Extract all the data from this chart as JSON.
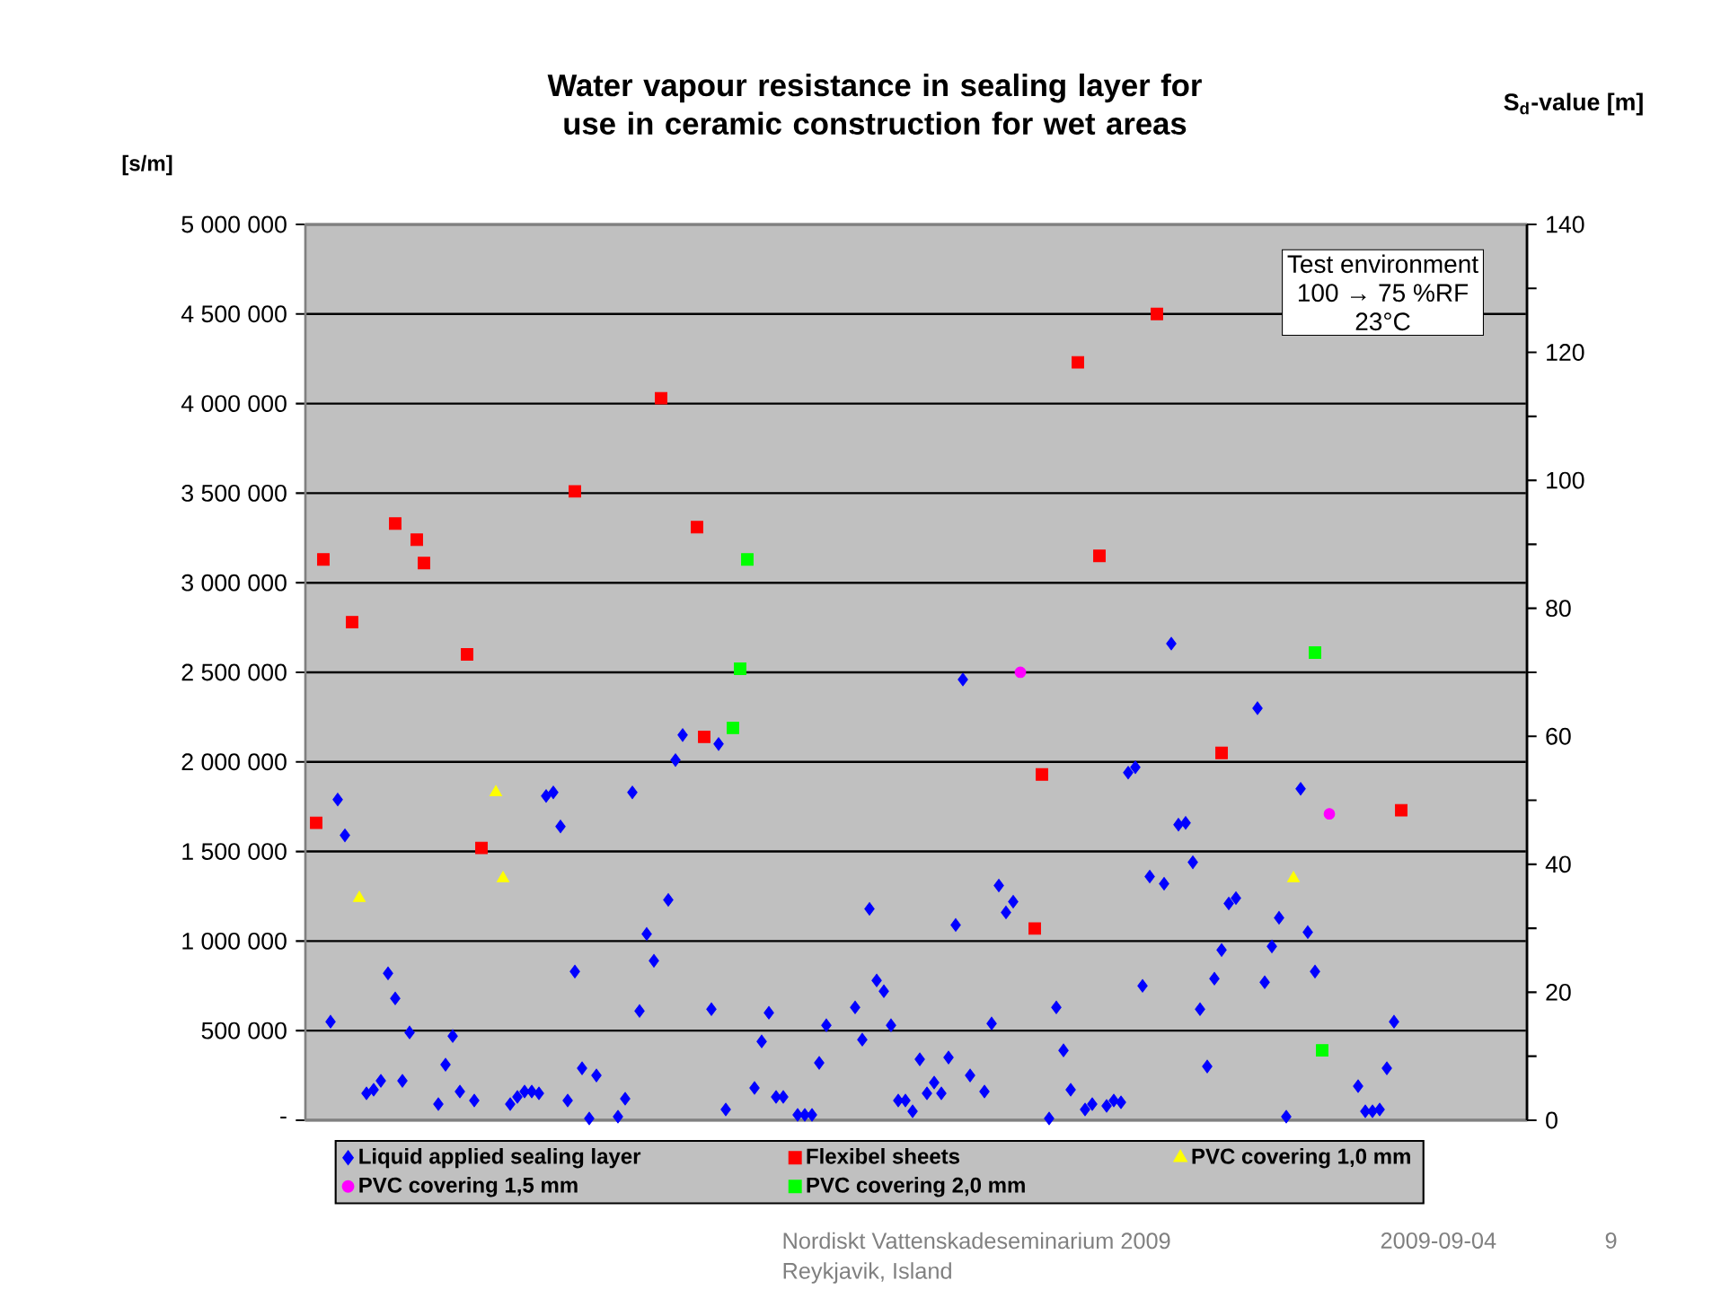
{
  "chart_data": {
    "type": "scatter",
    "title": "Water vapour resistance in sealing layer for use in ceramic construction for wet areas",
    "ylabel": "[s/m]",
    "y2label": "S$_{d}$-value [m]",
    "categories": [
      null,
      null,
      null,
      null,
      null,
      null,
      null,
      null,
      null,
      null,
      null,
      null,
      null,
      null,
      null,
      null,
      null,
      null,
      null,
      null,
      null,
      null,
      null,
      null,
      null,
      null,
      null,
      null,
      null,
      null,
      null,
      null,
      null,
      null,
      null,
      null,
      null,
      null,
      null,
      null,
      null,
      null,
      null,
      null,
      null,
      null,
      null,
      null,
      null,
      null,
      null,
      null,
      null,
      null,
      null,
      null,
      null,
      null,
      null,
      null,
      null,
      null,
      null,
      null,
      null,
      null,
      null,
      null,
      null,
      null,
      null,
      null,
      null,
      null,
      null,
      null,
      null,
      null,
      null,
      null,
      null,
      null,
      null,
      null,
      null,
      null,
      null,
      null,
      null,
      null,
      null,
      null,
      null,
      null,
      null,
      null,
      null,
      null,
      null,
      null,
      null,
      null,
      null,
      null,
      null,
      null,
      null,
      null,
      null,
      null,
      null,
      null,
      null,
      null,
      null,
      null,
      null,
      null,
      null,
      null,
      null,
      null,
      null,
      null,
      null,
      null,
      null,
      null,
      null,
      null,
      null,
      null,
      null,
      null,
      null,
      null,
      null,
      null,
      null,
      null,
      null,
      null,
      null,
      null,
      null,
      null,
      null,
      null,
      null,
      null,
      null,
      null,
      null,
      null,
      null,
      null,
      null,
      null,
      null,
      null,
      null,
      null,
      null,
      null,
      null,
      null,
      null,
      null,
      null,
      null
    ],
    "series": [
      {
        "name": "Liquid applied sealing layer",
        "color": "#0000ff",
        "marker": "diamond",
        "values": [
          null,
          null,
          null,
          550000,
          1790000,
          1590000,
          null,
          null,
          150000,
          170000,
          220000,
          820000,
          680000,
          220000,
          490000,
          null,
          null,
          null,
          90000,
          310000,
          470000,
          160000,
          null,
          110000,
          null,
          null,
          null,
          null,
          90000,
          130000,
          160000,
          160000,
          150000,
          1810000,
          1830000,
          1640000,
          110000,
          830000,
          290000,
          10000,
          250000,
          null,
          null,
          20000,
          120000,
          1830000,
          610000,
          1040000,
          890000,
          null,
          1230000,
          2010000,
          2150000,
          null,
          null,
          null,
          620000,
          2100000,
          60000,
          null,
          null,
          null,
          180000,
          440000,
          600000,
          130000,
          130000,
          null,
          30000,
          30000,
          30000,
          320000,
          530000,
          null,
          null,
          null,
          630000,
          450000,
          1180000,
          780000,
          720000,
          530000,
          110000,
          110000,
          50000,
          340000,
          150000,
          210000,
          150000,
          350000,
          1090000,
          2460000,
          250000,
          null,
          160000,
          540000,
          1310000,
          1160000,
          1220000,
          null,
          null,
          null,
          null,
          10000,
          630000,
          390000,
          170000,
          null,
          60000,
          90000,
          null,
          80000,
          110000,
          100000,
          1940000,
          1970000,
          750000,
          1360000,
          null,
          1320000,
          2660000,
          1650000,
          1660000,
          1440000,
          620000,
          300000,
          790000,
          950000,
          1210000,
          1240000,
          null,
          null,
          2300000,
          770000,
          970000,
          1130000,
          20000,
          null,
          1850000,
          1050000,
          830000,
          null,
          null,
          null,
          null,
          null,
          190000,
          50000,
          50000,
          60000,
          290000,
          550000,
          null,
          null,
          null,
          null,
          null,
          null,
          null,
          null,
          null,
          null,
          null,
          null,
          null,
          null,
          null,
          null,
          null,
          null
        ]
      },
      {
        "name": "Flexibel sheets",
        "color": "#ff0000",
        "marker": "square",
        "values": [
          null,
          1660000,
          3130000,
          null,
          null,
          null,
          2780000,
          null,
          null,
          null,
          null,
          null,
          3330000,
          null,
          null,
          3240000,
          3110000,
          null,
          null,
          null,
          null,
          null,
          2600000,
          null,
          1520000,
          null,
          null,
          null,
          null,
          null,
          null,
          null,
          null,
          null,
          null,
          null,
          null,
          3510000,
          null,
          null,
          null,
          null,
          null,
          null,
          null,
          null,
          null,
          null,
          null,
          4030000,
          null,
          null,
          null,
          null,
          3310000,
          2140000,
          null,
          null,
          null,
          null,
          null,
          null,
          null,
          null,
          null,
          null,
          null,
          null,
          null,
          null,
          null,
          null,
          null,
          null,
          null,
          null,
          null,
          null,
          null,
          null,
          null,
          null,
          null,
          null,
          null,
          null,
          null,
          null,
          null,
          null,
          null,
          null,
          null,
          null,
          null,
          null,
          null,
          null,
          null,
          null,
          null,
          1070000,
          1930000,
          null,
          null,
          null,
          null,
          4230000,
          null,
          null,
          3150000,
          null,
          null,
          null,
          null,
          null,
          null,
          null,
          4500000,
          null,
          null,
          null,
          null,
          null,
          null,
          null,
          null,
          2050000,
          null,
          null,
          null,
          null,
          null,
          null,
          null,
          null,
          null,
          null,
          null,
          null,
          null,
          null,
          null,
          null,
          null,
          null,
          null,
          null,
          null,
          null,
          null,
          null,
          1730000,
          null,
          null,
          null,
          null,
          null,
          null,
          null,
          null,
          null,
          null,
          null,
          null,
          null,
          null,
          null,
          null,
          null
        ]
      },
      {
        "name": "PVC covering 1,0 mm",
        "color": "#ffff00",
        "marker": "triangle",
        "values": [
          null,
          null,
          null,
          null,
          null,
          null,
          null,
          1240000,
          null,
          null,
          null,
          null,
          null,
          null,
          null,
          null,
          null,
          null,
          null,
          null,
          null,
          null,
          null,
          null,
          null,
          null,
          1830000,
          1350000,
          null,
          null,
          null,
          null,
          null,
          null,
          null,
          null,
          null,
          null,
          null,
          null,
          null,
          null,
          null,
          null,
          null,
          null,
          null,
          null,
          null,
          null,
          null,
          null,
          null,
          null,
          null,
          null,
          null,
          null,
          null,
          null,
          null,
          null,
          null,
          null,
          null,
          null,
          null,
          null,
          null,
          null,
          null,
          null,
          null,
          null,
          null,
          null,
          null,
          null,
          null,
          null,
          null,
          null,
          null,
          null,
          null,
          null,
          null,
          null,
          null,
          null,
          null,
          null,
          null,
          null,
          null,
          null,
          null,
          null,
          null,
          null,
          null,
          null,
          null,
          null,
          null,
          null,
          null,
          null,
          null,
          null,
          null,
          null,
          null,
          null,
          null,
          null,
          null,
          null,
          null,
          null,
          null,
          null,
          null,
          null,
          null,
          null,
          null,
          null,
          null,
          null,
          null,
          null,
          null,
          null,
          null,
          null,
          null,
          1350000,
          null,
          null,
          null,
          null,
          null,
          null,
          null,
          null,
          null,
          null,
          null,
          null,
          null,
          null,
          null,
          null,
          null,
          null,
          null,
          null,
          null,
          null,
          null,
          null,
          null,
          null,
          null,
          null,
          null,
          null,
          null,
          null
        ]
      },
      {
        "name": "PVC covering 1,5 mm",
        "color": "#ff00ff",
        "marker": "circle",
        "values": [
          null,
          null,
          null,
          null,
          null,
          null,
          null,
          null,
          null,
          null,
          null,
          null,
          null,
          null,
          null,
          null,
          null,
          null,
          null,
          null,
          null,
          null,
          null,
          null,
          null,
          null,
          null,
          null,
          null,
          null,
          null,
          null,
          null,
          null,
          null,
          null,
          null,
          null,
          null,
          null,
          null,
          null,
          null,
          null,
          null,
          null,
          null,
          null,
          null,
          null,
          null,
          null,
          null,
          null,
          null,
          null,
          null,
          null,
          null,
          null,
          null,
          null,
          null,
          null,
          null,
          null,
          null,
          null,
          null,
          null,
          null,
          null,
          null,
          null,
          null,
          null,
          null,
          null,
          null,
          null,
          null,
          null,
          null,
          null,
          null,
          null,
          null,
          null,
          null,
          null,
          null,
          null,
          null,
          null,
          null,
          null,
          null,
          null,
          null,
          2500000,
          null,
          null,
          null,
          null,
          null,
          null,
          null,
          null,
          null,
          null,
          null,
          null,
          null,
          null,
          null,
          null,
          null,
          null,
          null,
          null,
          null,
          null,
          null,
          null,
          null,
          null,
          null,
          null,
          null,
          null,
          null,
          null,
          null,
          null,
          null,
          null,
          null,
          null,
          null,
          null,
          null,
          null,
          1710000,
          null,
          null,
          null,
          null,
          null,
          null,
          null,
          null,
          null,
          null,
          null,
          null,
          null,
          null,
          null,
          null,
          null,
          null,
          null,
          null,
          null,
          null,
          null,
          null,
          null,
          null,
          null
        ]
      },
      {
        "name": "PVC covering 2,0 mm",
        "color": "#00ff00",
        "marker": "square",
        "values": [
          null,
          null,
          null,
          null,
          null,
          null,
          null,
          null,
          null,
          null,
          null,
          null,
          null,
          null,
          null,
          null,
          null,
          null,
          null,
          null,
          null,
          null,
          null,
          null,
          null,
          null,
          null,
          null,
          null,
          null,
          null,
          null,
          null,
          null,
          null,
          null,
          null,
          null,
          null,
          null,
          null,
          null,
          null,
          null,
          null,
          null,
          null,
          null,
          null,
          null,
          null,
          null,
          null,
          null,
          null,
          null,
          null,
          null,
          null,
          2190000,
          2520000,
          3130000,
          null,
          null,
          null,
          null,
          null,
          null,
          null,
          null,
          null,
          null,
          null,
          null,
          null,
          null,
          null,
          null,
          null,
          null,
          null,
          null,
          null,
          null,
          null,
          null,
          null,
          null,
          null,
          null,
          null,
          null,
          null,
          null,
          null,
          null,
          null,
          null,
          null,
          null,
          null,
          null,
          null,
          null,
          null,
          null,
          null,
          null,
          null,
          null,
          null,
          null,
          null,
          null,
          null,
          null,
          null,
          null,
          null,
          null,
          null,
          null,
          null,
          null,
          null,
          null,
          null,
          null,
          null,
          null,
          null,
          null,
          null,
          null,
          null,
          null,
          null,
          null,
          null,
          null,
          2610000,
          390000,
          null,
          null,
          null,
          null,
          null,
          null,
          null,
          null,
          null,
          null,
          null,
          null,
          null,
          null,
          null,
          null,
          null,
          null,
          null,
          null,
          null,
          null,
          null,
          null,
          null,
          null,
          null,
          null
        ]
      }
    ],
    "ylim": [
      0,
      5000000
    ],
    "yticks": [
      {
        "value": 0,
        "label": "-"
      },
      {
        "value": 500000,
        "label": "500 000"
      },
      {
        "value": 1000000,
        "label": "1 000 000"
      },
      {
        "value": 1500000,
        "label": "1 500 000"
      },
      {
        "value": 2000000,
        "label": "2 000 000"
      },
      {
        "value": 2500000,
        "label": "2 500 000"
      },
      {
        "value": 3000000,
        "label": "3 000 000"
      },
      {
        "value": 3500000,
        "label": "3 500 000"
      },
      {
        "value": 4000000,
        "label": "4 000 000"
      },
      {
        "value": 4500000,
        "label": "4 500 000"
      },
      {
        "value": 5000000,
        "label": "5 000 000"
      }
    ],
    "y2lim": [
      0,
      140
    ],
    "y2ticks": [
      0,
      {
        "value": 10,
        "label": null
      },
      20,
      {
        "value": 30,
        "label": null
      },
      40,
      {
        "value": 50,
        "label": null
      },
      60,
      {
        "value": 70,
        "label": null
      },
      80,
      {
        "value": 90,
        "label": null
      },
      100,
      {
        "value": 110,
        "label": null
      },
      120,
      {
        "value": 130,
        "label": null
      },
      140
    ],
    "tick_labels": "y",
    "grid": "y",
    "legend": "bottom",
    "annotations": [
      "Test environment",
      "100 → 75 %RF",
      "23°C",
      "Nordiskt Vattenskadeseminarium 2009",
      "Reykjavik, Island",
      "2009-09-04",
      "9"
    ]
  }
}
